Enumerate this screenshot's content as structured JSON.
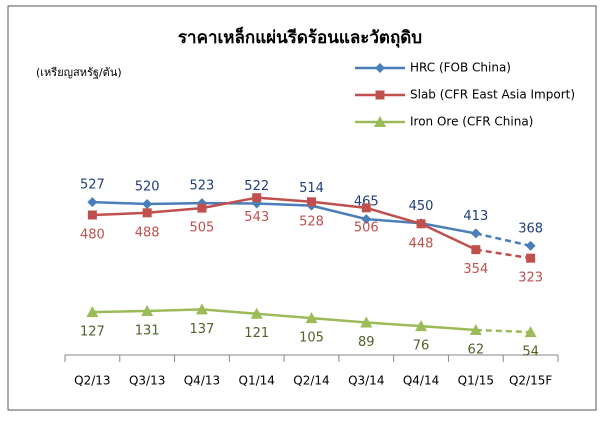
{
  "chart_data": {
    "type": "line",
    "title": "ราคาเหล็กแผ่นรีดร้อนและวัตถุดิบ",
    "y_label": "(เหรียญสหรัฐ/ตัน)",
    "categories": [
      "Q2/13",
      "Q3/13",
      "Q4/13",
      "Q1/14",
      "Q2/14",
      "Q3/14",
      "Q4/14",
      "Q1/15",
      "Q2/15F"
    ],
    "series": [
      {
        "name": "HRC (FOB China)",
        "color": "#4a7ebb",
        "label_color": "#1f3f7a",
        "marker": "diamond",
        "label_position": "above",
        "values": [
          527,
          520,
          523,
          522,
          514,
          465,
          450,
          413,
          368
        ]
      },
      {
        "name": "Slab (CFR East Asia Import)",
        "color": "#c0504d",
        "label_color": "#c0504d",
        "marker": "square",
        "label_position": "below",
        "values": [
          480,
          488,
          505,
          543,
          528,
          506,
          448,
          354,
          323
        ]
      },
      {
        "name": "Iron Ore (CFR China)",
        "color": "#9bbb59",
        "label_color": "#4f6228",
        "marker": "triangle",
        "label_position": "below",
        "values": [
          127,
          131,
          137,
          121,
          105,
          89,
          76,
          62,
          54
        ]
      }
    ],
    "forecast_from": 7,
    "ylim": [
      0,
      600
    ],
    "legend": "top-right"
  }
}
